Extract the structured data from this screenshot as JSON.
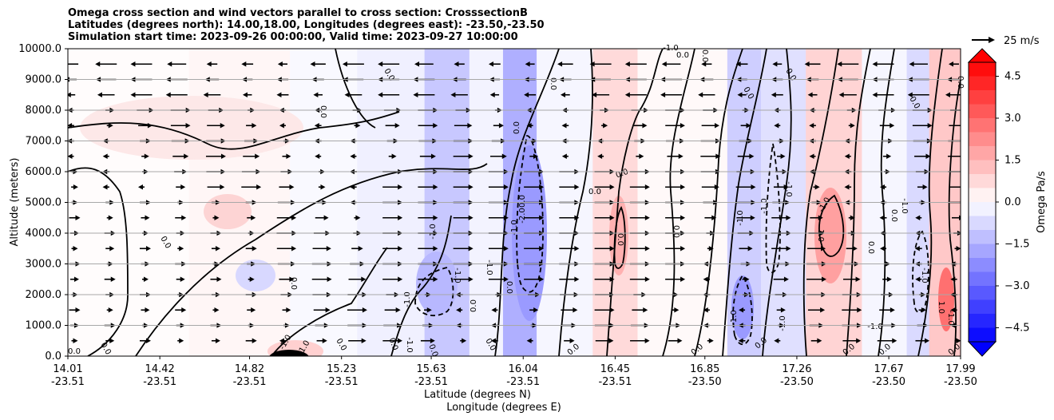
{
  "chart_data": {
    "type": "heatmap",
    "title_lines": [
      "Omega cross section and wind vectors parallel to cross section: CrosssectionB",
      "Latitudes (degrees north): 14.00,18.00, Longitudes (degrees east): -23.50,-23.50",
      "Simulation start time: 2023-09-26 00:00:00, Valid time: 2023-09-27 10:00:00"
    ],
    "ylabel": "Altitude (meters)",
    "xlabel_line1": "Latitude (degrees N)",
    "xlabel_line2": "Longitude (degrees E)",
    "ylim": [
      0,
      10000
    ],
    "y_ticks": [
      "0.0",
      "1000.0",
      "2000.0",
      "3000.0",
      "4000.0",
      "5000.0",
      "6000.0",
      "7000.0",
      "8000.0",
      "9000.0",
      "10000.0"
    ],
    "x_ticks": [
      {
        "lat": "14.01",
        "lon": "-23.51"
      },
      {
        "lat": "14.42",
        "lon": "-23.51"
      },
      {
        "lat": "14.82",
        "lon": "-23.51"
      },
      {
        "lat": "15.23",
        "lon": "-23.51"
      },
      {
        "lat": "15.63",
        "lon": "-23.51"
      },
      {
        "lat": "16.04",
        "lon": "-23.51"
      },
      {
        "lat": "16.45",
        "lon": "-23.51"
      },
      {
        "lat": "16.85",
        "lon": "-23.50"
      },
      {
        "lat": "17.26",
        "lon": "-23.50"
      },
      {
        "lat": "17.67",
        "lon": "-23.50"
      },
      {
        "lat": "17.99",
        "lon": "-23.50"
      }
    ],
    "grid": true,
    "colorbar": {
      "label": "Omega Pa/s",
      "ticks": [
        "4.5",
        "3.0",
        "1.5",
        "0.0",
        "−1.5",
        "−3.0",
        "−4.5"
      ],
      "range": [
        -5,
        5
      ],
      "colormap": "bwr"
    },
    "vector_key": {
      "label": "25 m/s"
    },
    "contour_labels": [
      "0.0",
      "-1.0",
      "-2.0",
      "1.0"
    ],
    "bands": [
      {
        "lat_start": 14.01,
        "lat_end": 14.55,
        "omega": 0.1
      },
      {
        "lat_start": 14.55,
        "lat_end": 15.0,
        "omega": 0.3
      },
      {
        "lat_start": 15.0,
        "lat_end": 15.3,
        "omega": -0.2
      },
      {
        "lat_start": 15.3,
        "lat_end": 15.6,
        "omega": -0.5
      },
      {
        "lat_start": 15.6,
        "lat_end": 15.8,
        "omega": -1.8
      },
      {
        "lat_start": 15.8,
        "lat_end": 15.95,
        "omega": -0.4
      },
      {
        "lat_start": 15.95,
        "lat_end": 16.1,
        "omega": -2.6
      },
      {
        "lat_start": 16.1,
        "lat_end": 16.35,
        "omega": -0.3
      },
      {
        "lat_start": 16.35,
        "lat_end": 16.55,
        "omega": 1.2
      },
      {
        "lat_start": 16.55,
        "lat_end": 16.95,
        "omega": 0.2
      },
      {
        "lat_start": 16.95,
        "lat_end": 17.1,
        "omega": -1.6
      },
      {
        "lat_start": 17.1,
        "lat_end": 17.3,
        "omega": -1.0
      },
      {
        "lat_start": 17.3,
        "lat_end": 17.55,
        "omega": 1.4
      },
      {
        "lat_start": 17.55,
        "lat_end": 17.75,
        "omega": -0.3
      },
      {
        "lat_start": 17.75,
        "lat_end": 17.85,
        "omega": -1.2
      },
      {
        "lat_start": 17.85,
        "lat_end": 17.99,
        "omega": 1.8
      }
    ]
  }
}
